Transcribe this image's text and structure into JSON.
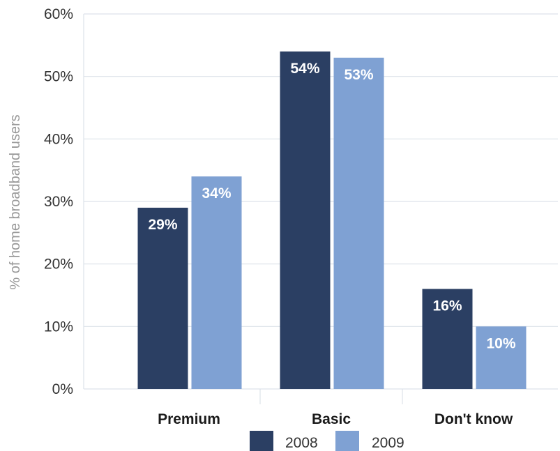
{
  "chart_data": {
    "type": "bar",
    "title": "",
    "xlabel": "",
    "ylabel": "% of home broadband users",
    "categories": [
      "Premium",
      "Basic",
      "Don't know"
    ],
    "series": [
      {
        "name": "2008",
        "values": [
          29,
          54,
          16
        ],
        "labels": [
          "29%",
          "54%",
          "16%"
        ],
        "color": "#2b3f63"
      },
      {
        "name": "2009",
        "values": [
          34,
          53,
          10
        ],
        "labels": [
          "34%",
          "53%",
          "10%"
        ],
        "color": "#7fa1d3"
      }
    ],
    "ylim": [
      0,
      60
    ],
    "yticks": [
      0,
      10,
      20,
      30,
      40,
      50,
      60
    ],
    "ytick_labels": [
      "0%",
      "10%",
      "20%",
      "30%",
      "40%",
      "50%",
      "60%"
    ],
    "grid": true,
    "legend_position": "bottom"
  }
}
